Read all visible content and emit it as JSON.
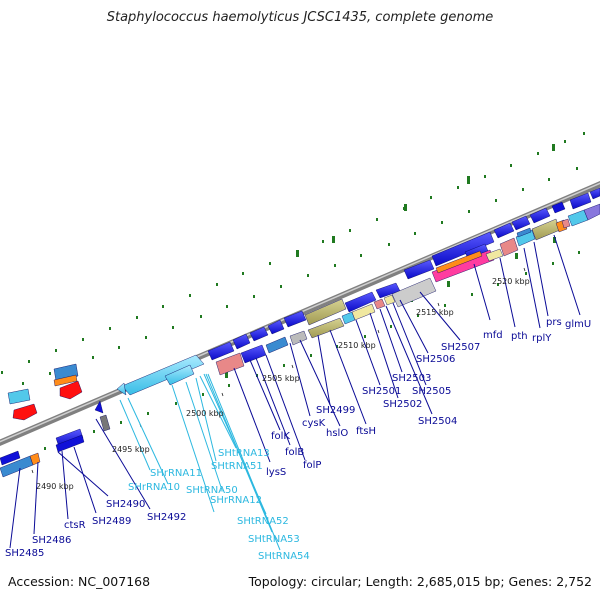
{
  "title": "Staphylococcus haemolyticus JCSC1435, complete genome",
  "footer": {
    "accession": "Accession: NC_007168",
    "summary": "Topology: circular; Length: 2,685,015 bp; Genes: 2,752"
  },
  "colors": {
    "cds": "#1010d8",
    "rna": "#52c8ea",
    "gene_label": "#0a0a96",
    "rna_label": "#2cb8e0",
    "backbone": "#7f7f7f",
    "gc_dots": "#207a20"
  },
  "scale_labels": [
    {
      "id": "2490",
      "text": "2490 kbp"
    },
    {
      "id": "2495",
      "text": "2495 kbp"
    },
    {
      "id": "2500",
      "text": "2500 kbp"
    },
    {
      "id": "2505",
      "text": "2505 kbp"
    },
    {
      "id": "2510",
      "text": "2510 kbp"
    },
    {
      "id": "2515",
      "text": "2515 kbp"
    },
    {
      "id": "2520",
      "text": "2520 kbp"
    }
  ],
  "gene_labels": [
    {
      "id": "sh2485",
      "text": "SH2485",
      "kind": "cds"
    },
    {
      "id": "sh2486",
      "text": "SH2486",
      "kind": "cds"
    },
    {
      "id": "ctsr",
      "text": "ctsR",
      "kind": "cds"
    },
    {
      "id": "sh2489",
      "text": "SH2489",
      "kind": "cds"
    },
    {
      "id": "sh2490",
      "text": "SH2490",
      "kind": "cds"
    },
    {
      "id": "sh2492",
      "text": "SH2492",
      "kind": "cds"
    },
    {
      "id": "shrrna10",
      "text": "SHrRNA10",
      "kind": "rna"
    },
    {
      "id": "shrrna11",
      "text": "SHrRNA11",
      "kind": "rna"
    },
    {
      "id": "shtrna50",
      "text": "SHtRNA50",
      "kind": "rna"
    },
    {
      "id": "shrrna12",
      "text": "SHrRNA12",
      "kind": "rna"
    },
    {
      "id": "shtrna51",
      "text": "SHtRNA51",
      "kind": "rna"
    },
    {
      "id": "shtrna13",
      "text": "SHtRNA13",
      "kind": "rna"
    },
    {
      "id": "shtrna52",
      "text": "SHtRNA52",
      "kind": "rna"
    },
    {
      "id": "shtrna53",
      "text": "SHtRNA53",
      "kind": "rna"
    },
    {
      "id": "shtrna54",
      "text": "SHtRNA54",
      "kind": "rna"
    },
    {
      "id": "lyss",
      "text": "lysS",
      "kind": "cds"
    },
    {
      "id": "folk",
      "text": "folK",
      "kind": "cds"
    },
    {
      "id": "folb",
      "text": "folB",
      "kind": "cds"
    },
    {
      "id": "folp",
      "text": "folP",
      "kind": "cds"
    },
    {
      "id": "cysk",
      "text": "cysK",
      "kind": "cds"
    },
    {
      "id": "hslo",
      "text": "hslO",
      "kind": "cds"
    },
    {
      "id": "sh2499",
      "text": "SH2499",
      "kind": "cds"
    },
    {
      "id": "ftsh",
      "text": "ftsH",
      "kind": "cds"
    },
    {
      "id": "sh2501",
      "text": "SH2501",
      "kind": "cds"
    },
    {
      "id": "sh2502",
      "text": "SH2502",
      "kind": "cds"
    },
    {
      "id": "sh2503",
      "text": "SH2503",
      "kind": "cds"
    },
    {
      "id": "sh2504",
      "text": "SH2504",
      "kind": "cds"
    },
    {
      "id": "sh2505",
      "text": "SH2505",
      "kind": "cds"
    },
    {
      "id": "sh2506",
      "text": "SH2506",
      "kind": "cds"
    },
    {
      "id": "sh2507",
      "text": "SH2507",
      "kind": "cds"
    },
    {
      "id": "mfd",
      "text": "mfd",
      "kind": "cds"
    },
    {
      "id": "pth",
      "text": "pth",
      "kind": "cds"
    },
    {
      "id": "rply",
      "text": "rplY",
      "kind": "cds"
    },
    {
      "id": "prs",
      "text": "prs",
      "kind": "cds"
    },
    {
      "id": "glmu",
      "text": "glmU",
      "kind": "cds"
    }
  ]
}
